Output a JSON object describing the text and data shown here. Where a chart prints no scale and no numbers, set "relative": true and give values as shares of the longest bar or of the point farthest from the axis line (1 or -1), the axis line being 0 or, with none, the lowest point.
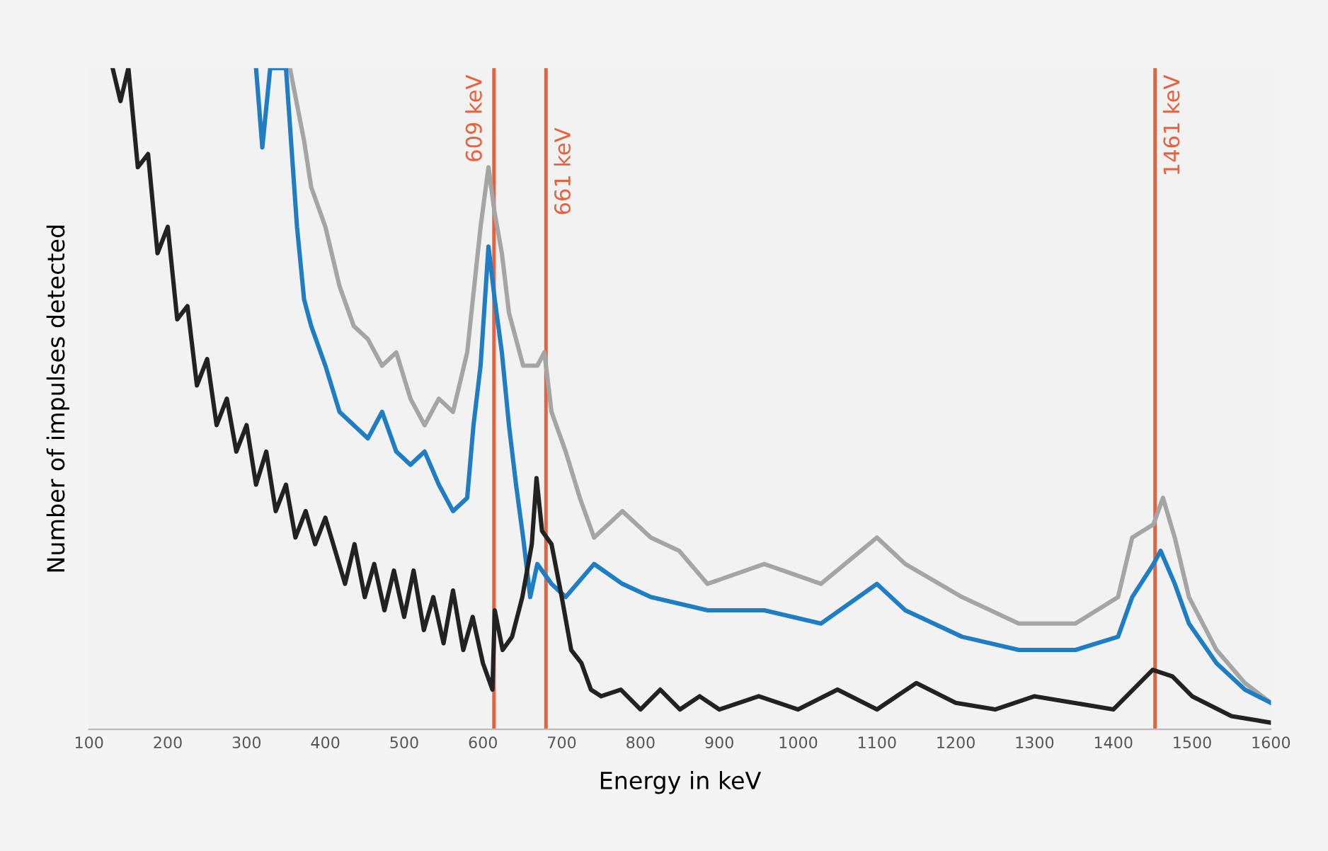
{
  "chart_data": {
    "type": "line",
    "relative": true,
    "xlabel": "Energy in keV",
    "ylabel": "Number of impulses detected",
    "xlim": [
      100,
      1600
    ],
    "xticks": [
      100,
      200,
      300,
      400,
      500,
      600,
      700,
      800,
      900,
      1000,
      1100,
      1200,
      1300,
      1400,
      1500,
      1600
    ],
    "tick_labels": "x",
    "grid": false,
    "legend": false,
    "line_style": "solid",
    "marker": "none",
    "ref_lines": [
      {
        "axis": "x",
        "value": 614,
        "label": "609 keV",
        "color": "#e8603c"
      },
      {
        "axis": "x",
        "value": 680,
        "label": "661 keV",
        "color": "#e8603c"
      },
      {
        "axis": "x",
        "value": 1453,
        "label": "1461 keV",
        "color": "#e8603c"
      }
    ],
    "series": [
      {
        "color": "#a5a5a5",
        "x": [
          355,
          373,
          382,
          400,
          418,
          436,
          454,
          472,
          490,
          508,
          526,
          544,
          562,
          580,
          597,
          607,
          615,
          624,
          633,
          651,
          669,
          678,
          687,
          705,
          723,
          741,
          777,
          813,
          849,
          885,
          957,
          1029,
          1100,
          1136,
          1208,
          1280,
          1352,
          1406,
          1424,
          1451,
          1463,
          1478,
          1496,
          1531,
          1567,
          1600
        ],
        "values": [
          1.0,
          0.89,
          0.82,
          0.76,
          0.67,
          0.61,
          0.59,
          0.55,
          0.57,
          0.5,
          0.46,
          0.5,
          0.48,
          0.57,
          0.76,
          0.85,
          0.78,
          0.72,
          0.63,
          0.55,
          0.55,
          0.57,
          0.48,
          0.42,
          0.35,
          0.29,
          0.33,
          0.29,
          0.27,
          0.22,
          0.25,
          0.22,
          0.29,
          0.25,
          0.2,
          0.16,
          0.16,
          0.2,
          0.29,
          0.31,
          0.35,
          0.29,
          0.2,
          0.12,
          0.07,
          0.04
        ]
      },
      {
        "color": "#1f7dc4",
        "x": [
          312,
          320,
          330,
          350,
          364,
          373,
          382,
          400,
          418,
          436,
          454,
          472,
          490,
          508,
          526,
          544,
          562,
          580,
          588,
          597,
          607,
          615,
          624,
          633,
          642,
          651,
          660,
          669,
          687,
          705,
          741,
          777,
          813,
          885,
          957,
          1029,
          1100,
          1136,
          1208,
          1280,
          1352,
          1406,
          1424,
          1451,
          1460,
          1478,
          1496,
          1531,
          1567,
          1600
        ],
        "values": [
          1.0,
          0.88,
          1.0,
          1.0,
          0.76,
          0.65,
          0.61,
          0.55,
          0.48,
          0.46,
          0.44,
          0.48,
          0.42,
          0.4,
          0.42,
          0.37,
          0.33,
          0.35,
          0.46,
          0.55,
          0.73,
          0.65,
          0.57,
          0.46,
          0.37,
          0.29,
          0.2,
          0.25,
          0.22,
          0.2,
          0.25,
          0.22,
          0.2,
          0.18,
          0.18,
          0.16,
          0.22,
          0.18,
          0.14,
          0.12,
          0.12,
          0.14,
          0.2,
          0.25,
          0.27,
          0.22,
          0.16,
          0.1,
          0.06,
          0.04
        ]
      },
      {
        "color": "#222222",
        "x": [
          130,
          140,
          150,
          162,
          175,
          187,
          200,
          212,
          225,
          237,
          250,
          262,
          275,
          287,
          300,
          312,
          325,
          337,
          350,
          362,
          375,
          387,
          400,
          425,
          437,
          450,
          462,
          475,
          487,
          500,
          512,
          525,
          537,
          550,
          562,
          575,
          587,
          600,
          612,
          615,
          625,
          637,
          650,
          662,
          668,
          675,
          687,
          700,
          712,
          725,
          737,
          750,
          775,
          800,
          825,
          850,
          875,
          900,
          950,
          1000,
          1050,
          1100,
          1150,
          1200,
          1250,
          1300,
          1350,
          1400,
          1425,
          1450,
          1475,
          1500,
          1550,
          1600
        ],
        "values": [
          1.0,
          0.95,
          1.0,
          0.85,
          0.87,
          0.72,
          0.76,
          0.62,
          0.64,
          0.52,
          0.56,
          0.46,
          0.5,
          0.42,
          0.46,
          0.37,
          0.42,
          0.33,
          0.37,
          0.29,
          0.33,
          0.28,
          0.32,
          0.22,
          0.28,
          0.2,
          0.25,
          0.18,
          0.24,
          0.17,
          0.24,
          0.15,
          0.2,
          0.13,
          0.21,
          0.12,
          0.17,
          0.1,
          0.06,
          0.18,
          0.12,
          0.14,
          0.2,
          0.28,
          0.38,
          0.3,
          0.28,
          0.2,
          0.12,
          0.1,
          0.06,
          0.05,
          0.06,
          0.03,
          0.06,
          0.03,
          0.05,
          0.03,
          0.05,
          0.03,
          0.06,
          0.03,
          0.07,
          0.04,
          0.03,
          0.05,
          0.04,
          0.03,
          0.06,
          0.09,
          0.08,
          0.05,
          0.02,
          0.01
        ]
      }
    ]
  }
}
